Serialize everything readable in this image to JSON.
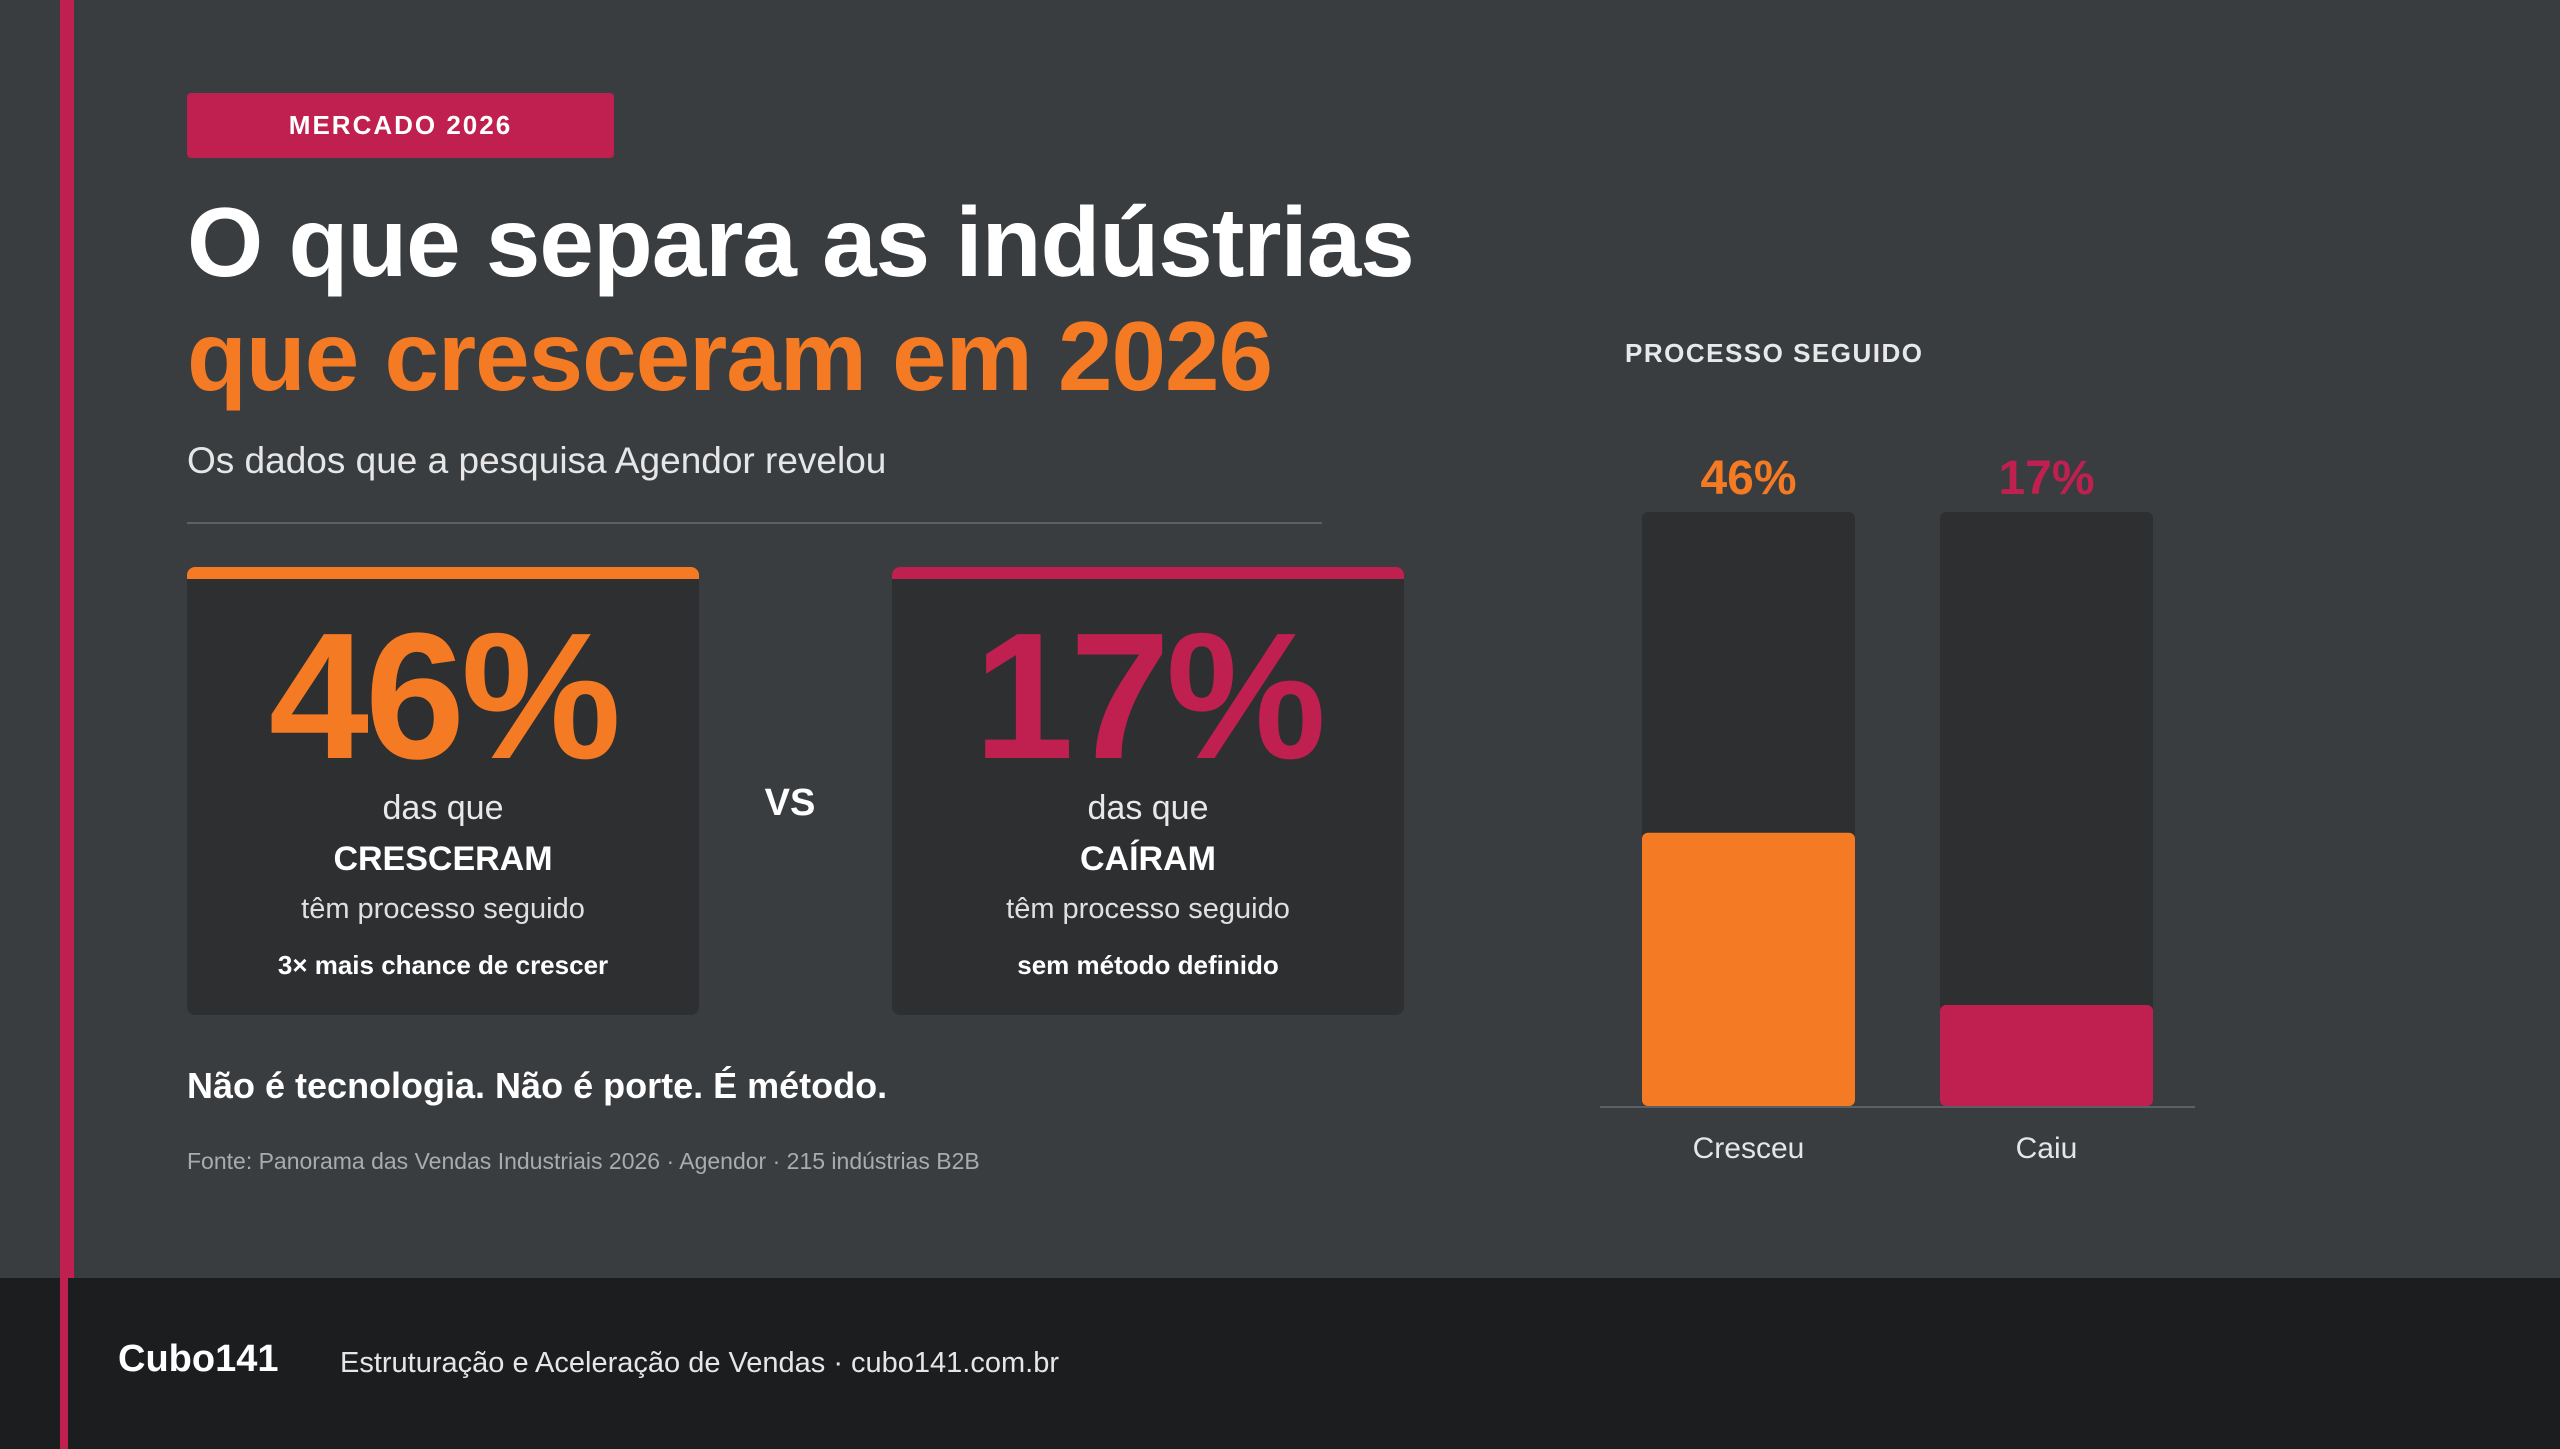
{
  "badge": "MERCADO 2026",
  "title_line1": "O que separa as indústrias",
  "title_line2": "que cresceram em 2026",
  "subtitle": "Os dados que a pesquisa Agendor revelou",
  "card_grew": {
    "value": "46%",
    "line1": "das que",
    "line2": "CRESCERAM",
    "line3": "têm processo seguido",
    "line4": "3× mais chance de crescer"
  },
  "vs": "VS",
  "card_fell": {
    "value": "17%",
    "line1": "das que",
    "line2": "CAÍRAM",
    "line3": "têm processo seguido",
    "line4": "sem método definido"
  },
  "claim": "Não é tecnologia. Não é porte. É método.",
  "source": "Fonte: Panorama das Vendas Industriais 2026 · Agendor · 215 indústrias B2B",
  "colors": {
    "orange": "#f47a23",
    "crimson": "#c0204f",
    "track": "#2d2f31"
  },
  "chart_data": {
    "type": "bar",
    "title": "PROCESSO SEGUIDO",
    "categories": [
      "Cresceu",
      "Caiu"
    ],
    "values": [
      46,
      17
    ],
    "value_labels": [
      "46%",
      "17%"
    ],
    "ylim": [
      0,
      100
    ],
    "bar_colors": [
      "#f47a23",
      "#c0204f"
    ],
    "grid": false
  },
  "footer": {
    "brand": "Cubo141",
    "tagline": "Estruturação e Aceleração de Vendas · cubo141.com.br"
  }
}
